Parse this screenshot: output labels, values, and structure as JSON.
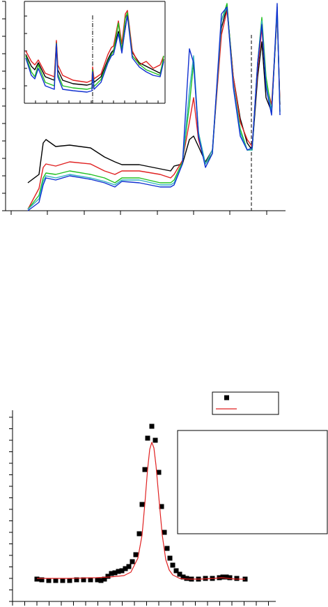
{
  "chart_data": [
    {
      "type": "line",
      "frame": "axes",
      "xlim": [
        0,
        402
      ],
      "ylim": [
        0,
        300
      ],
      "xticks": [
        8,
        60,
        113,
        165,
        218,
        270,
        322,
        375
      ],
      "yticks": [
        0,
        25,
        50,
        75,
        100,
        125,
        150,
        175,
        200,
        225,
        250,
        275,
        300
      ],
      "vline": 353,
      "vline_style": "dashed",
      "x": [
        32,
        48,
        54,
        58,
        72,
        92,
        122,
        142,
        157,
        167,
        192,
        222,
        237,
        242,
        254,
        264,
        270,
        277,
        287,
        297,
        310,
        318,
        327,
        337,
        347,
        354,
        362,
        368,
        374,
        382,
        390,
        394
      ],
      "series": [
        {
          "color": "#000000",
          "values": [
            40,
            52,
            97,
            102,
            92,
            94,
            90,
            77,
            70,
            66,
            66,
            60,
            57,
            64,
            67,
            102,
            107,
            92,
            70,
            87,
            262,
            292,
            192,
            132,
            97,
            87,
            192,
            242,
            162,
            142,
            282,
            152
          ]
        },
        {
          "color": "#e02020",
          "values": [
            2,
            32,
            62,
            67,
            64,
            70,
            67,
            57,
            52,
            57,
            57,
            52,
            47,
            52,
            72,
            127,
            162,
            102,
            67,
            87,
            252,
            287,
            192,
            127,
            102,
            92,
            202,
            262,
            182,
            152,
            282,
            152
          ]
        },
        {
          "color": "#20c020",
          "values": [
            2,
            22,
            47,
            54,
            52,
            57,
            52,
            47,
            40,
            47,
            47,
            40,
            40,
            44,
            70,
            152,
            212,
            112,
            67,
            82,
            272,
            297,
            182,
            117,
            87,
            87,
            212,
            277,
            192,
            142,
            292,
            142
          ]
        },
        {
          "color": "#30b0c0",
          "values": [
            2,
            17,
            42,
            50,
            47,
            52,
            47,
            42,
            37,
            44,
            44,
            37,
            37,
            40,
            67,
            172,
            222,
            112,
            67,
            87,
            272,
            292,
            182,
            112,
            87,
            87,
            212,
            272,
            182,
            142,
            287,
            142
          ]
        },
        {
          "color": "#1030d0",
          "values": [
            0,
            12,
            37,
            47,
            44,
            50,
            45,
            40,
            34,
            42,
            40,
            34,
            34,
            37,
            67,
            232,
            212,
            107,
            62,
            82,
            282,
            292,
            177,
            107,
            87,
            90,
            212,
            267,
            177,
            137,
            297,
            137
          ]
        }
      ]
    },
    {
      "type": "line",
      "frame": "box",
      "xlim": [
        0,
        202
      ],
      "ylim": [
        0,
        146
      ],
      "xticks": [
        0,
        16,
        32,
        48,
        64,
        80,
        96,
        112,
        128,
        144,
        160,
        176,
        192
      ],
      "yticks": [
        0,
        25,
        50,
        75,
        100,
        125
      ],
      "vline": 98,
      "vline_style": "dashdot",
      "x": [
        2,
        10,
        15,
        20,
        30,
        43,
        46,
        48,
        55,
        70,
        90,
        97,
        98,
        100,
        110,
        120,
        125,
        128,
        135,
        140,
        145,
        148,
        155,
        165,
        175,
        185,
        195,
        200
      ],
      "series": [
        {
          "color": "#000000",
          "values": [
            70,
            53,
            48,
            58,
            38,
            33,
            88,
            48,
            33,
            28,
            26,
            28,
            48,
            30,
            38,
            63,
            73,
            76,
            103,
            78,
            108,
            128,
            73,
            58,
            53,
            48,
            43,
            63
          ]
        },
        {
          "color": "#e02020",
          "values": [
            75,
            60,
            55,
            62,
            43,
            38,
            90,
            55,
            40,
            33,
            30,
            33,
            52,
            35,
            42,
            70,
            80,
            82,
            118,
            85,
            128,
            133,
            75,
            55,
            60,
            50,
            55,
            68
          ]
        },
        {
          "color": "#20c020",
          "values": [
            68,
            45,
            38,
            55,
            30,
            25,
            86,
            42,
            25,
            22,
            20,
            22,
            48,
            24,
            34,
            60,
            70,
            74,
            115,
            75,
            122,
            130,
            68,
            56,
            48,
            44,
            40,
            68
          ]
        },
        {
          "color": "#1030d0",
          "values": [
            65,
            40,
            35,
            50,
            25,
            20,
            85,
            38,
            20,
            18,
            16,
            18,
            45,
            20,
            30,
            58,
            68,
            70,
            100,
            72,
            110,
            125,
            65,
            52,
            45,
            40,
            38,
            60
          ]
        }
      ]
    },
    {
      "type": "scatter",
      "frame": "axes",
      "legend": "upper right",
      "xlim": [
        0,
        378
      ],
      "ylim": [
        0,
        274
      ],
      "xticks": [
        0,
        17.5,
        35,
        52.5,
        70,
        87.5,
        105,
        122.5,
        140,
        157.5,
        175,
        192.5,
        210,
        227.5,
        245,
        262.5,
        280,
        297.5,
        315,
        332.5,
        350,
        367.5
      ],
      "yticks": [
        0,
        16.5,
        33,
        49.5,
        66,
        82.5,
        99,
        115.5,
        132,
        148.5,
        165,
        181.5,
        198,
        214.5,
        231,
        247.5,
        264
      ],
      "series": [
        {
          "type": "scatter",
          "color": "#000000",
          "x": [
            35,
            42,
            52,
            62,
            72,
            82,
            92,
            102,
            112,
            122,
            127,
            132,
            137,
            142,
            147,
            152,
            157,
            162,
            167,
            172,
            177,
            182,
            186,
            190,
            194,
            200,
            205,
            210,
            214,
            218,
            222,
            226,
            230,
            235,
            240,
            245,
            250,
            257,
            267,
            277,
            287,
            297,
            302,
            307,
            312,
            322,
            334
          ],
          "values": [
            32,
            31,
            30,
            30,
            30,
            30,
            31,
            31,
            31,
            31,
            30,
            32,
            36,
            40,
            41,
            43,
            44,
            47,
            50,
            57,
            67,
            97,
            139,
            189,
            234,
            251,
            231,
            185,
            136,
            99,
            76,
            62,
            52,
            44,
            39,
            35,
            33,
            32,
            32,
            33,
            33,
            34,
            35,
            35,
            34,
            33,
            32
          ]
        },
        {
          "type": "line",
          "color": "#e02020",
          "x": [
            35,
            80,
            120,
            140,
            160,
            170,
            180,
            186,
            190,
            194,
            197,
            200,
            203,
            206,
            210,
            215,
            220,
            225,
            230,
            240,
            250,
            270,
            290,
            300,
            310,
            320,
            334
          ],
          "values": [
            33,
            33,
            34,
            35,
            37,
            42,
            62,
            95,
            140,
            190,
            218,
            228,
            220,
            195,
            150,
            95,
            60,
            45,
            38,
            33,
            32,
            32,
            33,
            34,
            33,
            32,
            32
          ]
        }
      ]
    }
  ]
}
